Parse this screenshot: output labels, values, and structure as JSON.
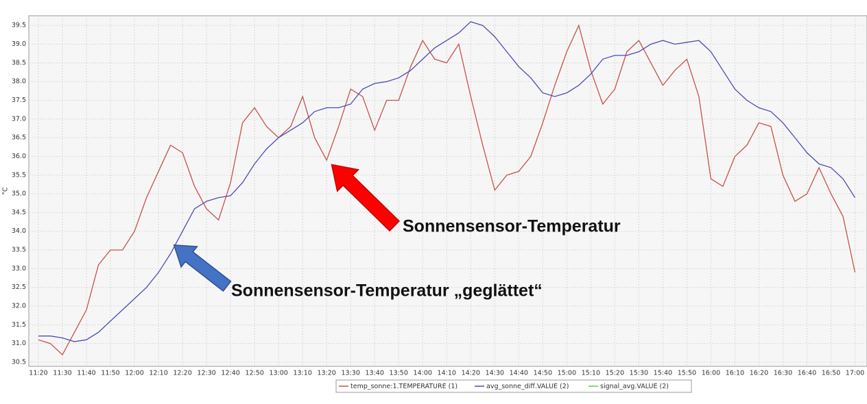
{
  "chart_data": {
    "type": "line",
    "y_label": "°C",
    "annotations": [
      "Sonnensensor-Temperatur",
      "Sonnensensor-Temperatur „geglättet“"
    ],
    "grid": true,
    "legend": "bottom",
    "x": [
      "11:20",
      "11:25",
      "11:30",
      "11:35",
      "11:40",
      "11:45",
      "11:50",
      "11:55",
      "12:00",
      "12:05",
      "12:10",
      "12:15",
      "12:20",
      "12:25",
      "12:30",
      "12:35",
      "12:40",
      "12:45",
      "12:50",
      "12:55",
      "13:00",
      "13:05",
      "13:10",
      "13:15",
      "13:20",
      "13:25",
      "13:30",
      "13:35",
      "13:40",
      "13:45",
      "13:50",
      "13:55",
      "14:00",
      "14:05",
      "14:10",
      "14:15",
      "14:20",
      "14:25",
      "14:30",
      "14:35",
      "14:40",
      "14:45",
      "14:50",
      "14:55",
      "15:00",
      "15:05",
      "15:10",
      "15:15",
      "15:20",
      "15:25",
      "15:30",
      "15:35",
      "15:40",
      "15:45",
      "15:50",
      "15:55",
      "16:00",
      "16:05",
      "16:10",
      "16:15",
      "16:20",
      "16:25",
      "16:30",
      "16:35",
      "16:40",
      "16:45",
      "16:50",
      "16:55",
      "17:00"
    ],
    "xlim": [
      "11:16",
      "17:05"
    ],
    "xticks": [
      "11:20",
      "11:30",
      "11:40",
      "11:50",
      "12:00",
      "12:10",
      "12:20",
      "12:30",
      "12:40",
      "12:50",
      "13:00",
      "13:10",
      "13:20",
      "13:30",
      "13:40",
      "13:50",
      "14:00",
      "14:10",
      "14:20",
      "14:30",
      "14:40",
      "14:50",
      "15:00",
      "15:10",
      "15:20",
      "15:30",
      "15:40",
      "15:50",
      "16:00",
      "16:10",
      "16:20",
      "16:30",
      "16:40",
      "16:50",
      "17:00"
    ],
    "ylim": [
      30.39,
      39.76
    ],
    "yticks": [
      30.5,
      {
        "value": 31,
        "label": "31.0"
      },
      31.5,
      {
        "value": 32,
        "label": "32.0"
      },
      32.5,
      {
        "value": 33,
        "label": "33.0"
      },
      33.5,
      {
        "value": 34,
        "label": "34.0"
      },
      34.5,
      {
        "value": 35,
        "label": "35.0"
      },
      35.5,
      {
        "value": 36,
        "label": "36.0"
      },
      36.5,
      {
        "value": 37,
        "label": "37.0"
      },
      37.5,
      {
        "value": 38,
        "label": "38.0"
      },
      38.5,
      {
        "value": 39,
        "label": "39.0"
      },
      39.5
    ],
    "series": [
      {
        "name": "temp_sonne:1.TEMPERATURE (1)",
        "color": "#c8504b",
        "values": [
          31.1,
          31.0,
          30.7,
          31.3,
          31.9,
          33.1,
          33.5,
          33.5,
          34.0,
          34.9,
          35.6,
          36.3,
          36.1,
          35.2,
          34.6,
          34.3,
          35.3,
          36.9,
          37.3,
          36.8,
          36.5,
          36.8,
          37.6,
          36.5,
          35.9,
          36.8,
          37.8,
          37.6,
          36.7,
          37.5,
          37.5,
          38.4,
          39.1,
          38.6,
          38.5,
          39.0,
          37.6,
          36.3,
          35.1,
          35.5,
          35.6,
          36.0,
          36.9,
          37.9,
          38.8,
          39.5,
          38.3,
          37.4,
          37.8,
          38.8,
          39.1,
          38.5,
          37.9,
          38.3,
          38.6,
          37.6,
          35.4,
          35.2,
          36.0,
          36.3,
          36.9,
          36.8,
          35.5,
          34.8,
          35.0,
          35.7,
          35.0,
          34.4,
          32.9
        ]
      },
      {
        "name": "avg_sonne_diff.VALUE (2)",
        "color": "#4b4bb4",
        "values": [
          31.2,
          31.2,
          31.15,
          31.05,
          31.1,
          31.3,
          31.6,
          31.9,
          32.2,
          32.5,
          32.9,
          33.4,
          34.0,
          34.6,
          34.8,
          34.9,
          34.95,
          35.3,
          35.8,
          36.2,
          36.5,
          36.7,
          36.9,
          37.2,
          37.3,
          37.3,
          37.4,
          37.8,
          37.95,
          38.0,
          38.1,
          38.3,
          38.6,
          38.9,
          39.1,
          39.3,
          39.6,
          39.5,
          39.2,
          38.8,
          38.4,
          38.1,
          37.7,
          37.6,
          37.7,
          37.9,
          38.2,
          38.6,
          38.7,
          38.7,
          38.8,
          39.0,
          39.1,
          39.0,
          39.05,
          39.1,
          38.8,
          38.3,
          37.8,
          37.5,
          37.3,
          37.2,
          36.9,
          36.5,
          36.1,
          35.8,
          35.7,
          35.4,
          34.9
        ]
      },
      {
        "name": "signal_avg.VALUE (2)",
        "color": "#5cc85c",
        "values": [
          null,
          null,
          null,
          null,
          null,
          null,
          null,
          null,
          null,
          null,
          null,
          null,
          null,
          null,
          null,
          null,
          null,
          null,
          null,
          null,
          null,
          null,
          null,
          null,
          null,
          null,
          null,
          null,
          null,
          null,
          null,
          null,
          null,
          null,
          null,
          null,
          null,
          null,
          null,
          null,
          null,
          null,
          null,
          null,
          null,
          null,
          null,
          null,
          null,
          null,
          null,
          null,
          null,
          null,
          null,
          null,
          null,
          null,
          null,
          null,
          null,
          null,
          null,
          null,
          null,
          null,
          null,
          null,
          null
        ]
      }
    ]
  }
}
